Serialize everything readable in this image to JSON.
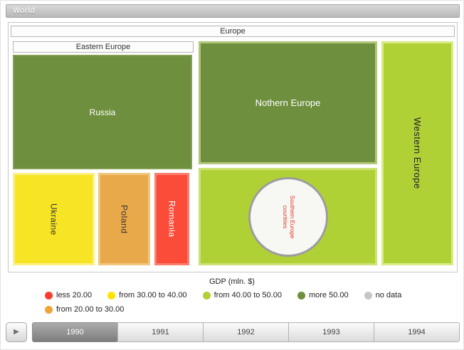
{
  "window": {
    "title": "World"
  },
  "treemap": {
    "europe": {
      "label": "Europe"
    },
    "eastern_europe": {
      "label": "Eastern Europe"
    },
    "russia": {
      "label": "Russia",
      "color": "#6e8f3e"
    },
    "ukraine": {
      "label": "Ukraine",
      "color": "#f7e424"
    },
    "poland": {
      "label": "Poland",
      "color": "#e8a94a"
    },
    "romania": {
      "label": "Romania",
      "color": "#fb4c39"
    },
    "northern_europe": {
      "label": "Nothern Europe",
      "color": "#6e8f3e"
    },
    "southern_europe": {
      "label": "Southern Europe countries",
      "color": "#b0d136"
    },
    "western_europe": {
      "label": "Western Europe",
      "color": "#b0d136"
    }
  },
  "legend": {
    "title": "GDP (mln. $)",
    "items": [
      {
        "label": "less 20.00",
        "color": "#fb3d2d"
      },
      {
        "label": "from 30.00 to 40.00",
        "color": "#ffe400"
      },
      {
        "label": "from 40.00 to 50.00",
        "color": "#b0d136"
      },
      {
        "label": "more 50.00",
        "color": "#6e8f3e"
      },
      {
        "label": "no data",
        "color": "#c6c6c6"
      },
      {
        "label": "from 20.00 to 30.00",
        "color": "#eea538"
      }
    ]
  },
  "timeline": {
    "play_icon": "▶",
    "years": [
      {
        "label": "1990",
        "selected": true
      },
      {
        "label": "1991",
        "selected": false
      },
      {
        "label": "1992",
        "selected": false
      },
      {
        "label": "1993",
        "selected": false
      },
      {
        "label": "1994",
        "selected": false
      }
    ]
  },
  "chart_data": {
    "type": "treemap",
    "title": "GDP (mln. $)",
    "root": "World",
    "hierarchy": {
      "name": "World",
      "children": [
        {
          "name": "Europe",
          "children": [
            {
              "name": "Eastern Europe",
              "children": [
                {
                  "name": "Russia",
                  "gdp_range": "more 50.00"
                },
                {
                  "name": "Ukraine",
                  "gdp_range": "from 30.00 to 40.00"
                },
                {
                  "name": "Poland",
                  "gdp_range": "from 20.00 to 30.00"
                },
                {
                  "name": "Romania",
                  "gdp_range": "less 20.00"
                }
              ]
            },
            {
              "name": "Nothern Europe",
              "gdp_range": "more 50.00"
            },
            {
              "name": "Southern Europe countries",
              "gdp_range": "from 40.00 to 50.00"
            },
            {
              "name": "Western Europe",
              "gdp_range": "from 40.00 to 50.00"
            }
          ]
        }
      ]
    },
    "legend": [
      {
        "label": "less 20.00",
        "color": "#fb3d2d"
      },
      {
        "label": "from 20.00 to 30.00",
        "color": "#eea538"
      },
      {
        "label": "from 30.00 to 40.00",
        "color": "#ffe400"
      },
      {
        "label": "from 40.00 to 50.00",
        "color": "#b0d136"
      },
      {
        "label": "more 50.00",
        "color": "#6e8f3e"
      },
      {
        "label": "no data",
        "color": "#c6c6c6"
      }
    ],
    "timeline_years": [
      "1990",
      "1991",
      "1992",
      "1993",
      "1994"
    ],
    "selected_year": "1990"
  }
}
